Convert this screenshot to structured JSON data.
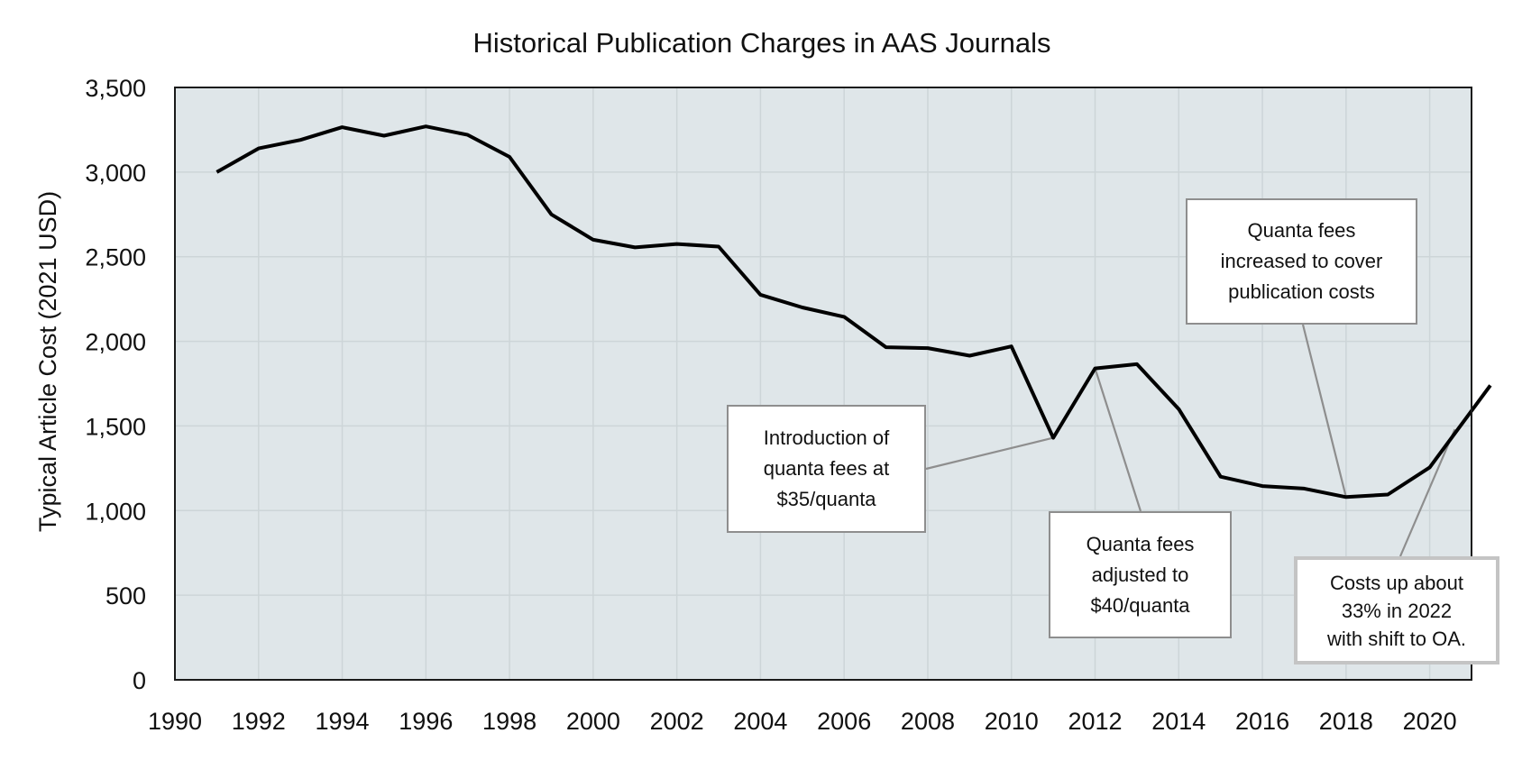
{
  "chart_data": {
    "type": "line",
    "title": "Historical Publication Charges in AAS Journals",
    "xlabel": "",
    "ylabel": "Typical Article Cost (2021 USD)",
    "xlim": [
      1990,
      2021
    ],
    "ylim": [
      0,
      3500
    ],
    "grid": true,
    "legend": "none",
    "x_ticks": [
      "1990",
      "1992",
      "1994",
      "1996",
      "1998",
      "2000",
      "2002",
      "2004",
      "2006",
      "2008",
      "2010",
      "2012",
      "2014",
      "2016",
      "2018",
      "2020"
    ],
    "y_ticks": [
      "0",
      "500",
      "1,000",
      "1,500",
      "2,000",
      "2,500",
      "3,000",
      "3,500"
    ],
    "series": [
      {
        "name": "Typical Article Cost",
        "color": "#000000",
        "x": [
          1991,
          1992,
          1993,
          1994,
          1995,
          1996,
          1997,
          1998,
          1999,
          2000,
          2001,
          2002,
          2003,
          2004,
          2005,
          2006,
          2007,
          2008,
          2009,
          2010,
          2011,
          2012,
          2013,
          2014,
          2015,
          2016,
          2017,
          2018,
          2019,
          2020,
          2021.45
        ],
        "y": [
          3000,
          3140,
          3190,
          3265,
          3215,
          3270,
          3220,
          3090,
          2750,
          2600,
          2555,
          2575,
          2560,
          2275,
          2200,
          2145,
          1965,
          1960,
          1915,
          1970,
          1430,
          1840,
          1865,
          1600,
          1200,
          1145,
          1130,
          1080,
          1095,
          1255,
          1740
        ]
      }
    ],
    "annotations": [
      {
        "text": "Introduction of\nquanta fees at\n$35/quanta",
        "x": 2011,
        "y": 1430
      },
      {
        "text": "Quanta fees\nadjusted to\n$40/quanta",
        "x": 2012,
        "y": 1840
      },
      {
        "text": "Quanta fees\nincreased to cover\npublication costs",
        "x": 2018,
        "y": 1080
      },
      {
        "text": "Costs up about\n33% in 2022\nwith shift to OA.",
        "x": 2020.6,
        "y": 1480
      }
    ],
    "colors": {
      "plot_background": "#dfe6e9",
      "gridline": "#cdd5d8",
      "leader_line": "#8e8e8e"
    }
  }
}
